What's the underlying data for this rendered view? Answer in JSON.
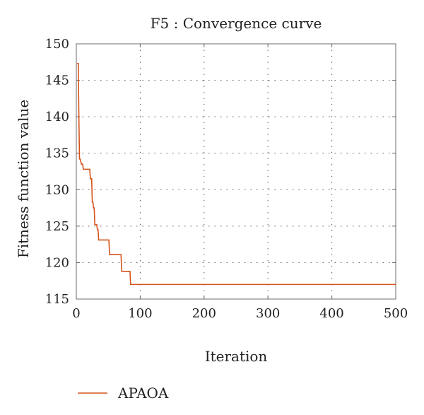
{
  "chart_data": {
    "type": "line",
    "title": "F5 : Convergence curve",
    "xlabel": "Iteration",
    "ylabel": "Fitness function value",
    "xlim": [
      0,
      500
    ],
    "ylim": [
      115,
      150
    ],
    "xticks": [
      0,
      100,
      200,
      300,
      400,
      500
    ],
    "yticks": [
      115,
      120,
      125,
      130,
      135,
      140,
      145,
      150
    ],
    "grid": true,
    "legend_position": "bottom-left",
    "series": [
      {
        "name": "APAOA",
        "color": "#d4541c",
        "x": [
          1,
          3,
          4,
          5,
          6,
          8,
          10,
          11,
          20,
          21,
          22,
          24,
          25,
          26,
          27,
          28,
          29,
          30,
          32,
          33,
          34,
          35,
          36,
          37,
          50,
          51,
          52,
          53,
          70,
          71,
          72,
          73,
          84,
          85,
          86,
          87,
          500
        ],
        "y": [
          147.3,
          147.3,
          140.0,
          134.2,
          134.2,
          133.5,
          133.5,
          132.8,
          132.8,
          132.8,
          131.5,
          131.5,
          128.3,
          128.3,
          127.5,
          127.5,
          125.2,
          125.2,
          125.2,
          124.5,
          124.5,
          123.1,
          123.1,
          123.1,
          123.1,
          123.1,
          121.1,
          121.1,
          121.1,
          118.8,
          118.8,
          118.8,
          118.8,
          117.0,
          117.0,
          117.0,
          117.0
        ]
      }
    ]
  }
}
